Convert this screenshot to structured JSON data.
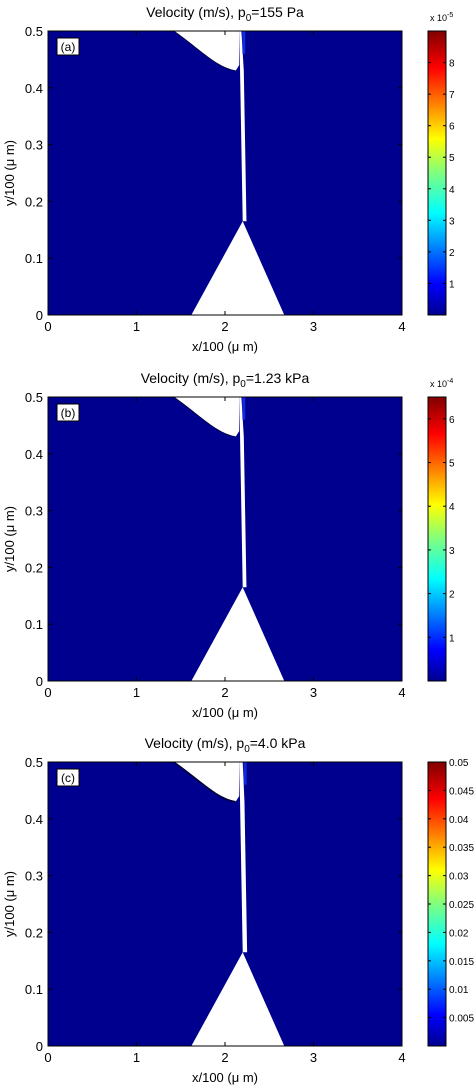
{
  "figure": {
    "colormap": "jet",
    "field_color": "#00008f",
    "solid_color": "#ffffff"
  },
  "chart_data": [
    {
      "type": "heatmap",
      "panel_label": "(a)",
      "title_main": "Velocity (m/s), p",
      "title_sub": "0",
      "title_rest": "=155 Pa",
      "xlabel": "x/100 (μ m)",
      "ylabel": "y/100 (μ m)",
      "xlim": [
        0,
        4
      ],
      "ylim": [
        0,
        0.5
      ],
      "xticks": [
        0,
        1,
        2,
        3,
        4
      ],
      "yticks": [
        0,
        0.1,
        0.2,
        0.3,
        0.4,
        0.5
      ],
      "xtick_labels": [
        "0",
        "1",
        "2",
        "3",
        "4"
      ],
      "ytick_labels": [
        "0",
        "0.1",
        "0.2",
        "0.3",
        "0.4",
        "0.5"
      ],
      "colorbar": {
        "multiplier": "x 10",
        "exponent": "-5",
        "clim": [
          0,
          9
        ],
        "ticks": [
          1,
          2,
          3,
          4,
          5,
          6,
          7,
          8
        ],
        "tick_labels": [
          "1",
          "2",
          "3",
          "4",
          "5",
          "6",
          "7",
          "8"
        ]
      }
    },
    {
      "type": "heatmap",
      "panel_label": "(b)",
      "title_main": "Velocity (m/s), p",
      "title_sub": "0",
      "title_rest": "=1.23 kPa",
      "xlabel": "x/100 (μ m)",
      "ylabel": "y/100 (μ m)",
      "xlim": [
        0,
        4
      ],
      "ylim": [
        0,
        0.5
      ],
      "xticks": [
        0,
        1,
        2,
        3,
        4
      ],
      "yticks": [
        0,
        0.1,
        0.2,
        0.3,
        0.4,
        0.5
      ],
      "xtick_labels": [
        "0",
        "1",
        "2",
        "3",
        "4"
      ],
      "ytick_labels": [
        "0",
        "0.1",
        "0.2",
        "0.3",
        "0.4",
        "0.5"
      ],
      "colorbar": {
        "multiplier": "x 10",
        "exponent": "-4",
        "clim": [
          0,
          6.5
        ],
        "ticks": [
          1,
          2,
          3,
          4,
          5,
          6
        ],
        "tick_labels": [
          "1",
          "2",
          "3",
          "4",
          "5",
          "6"
        ]
      }
    },
    {
      "type": "heatmap",
      "panel_label": "(c)",
      "title_main": "Velocity (m/s), p",
      "title_sub": "0",
      "title_rest": "=4.0 kPa",
      "xlabel": "x/100 (μ m)",
      "ylabel": "y/100 (μ m)",
      "xlim": [
        0,
        4
      ],
      "ylim": [
        0,
        0.5
      ],
      "xticks": [
        0,
        1,
        2,
        3,
        4
      ],
      "yticks": [
        0,
        0.1,
        0.2,
        0.3,
        0.4,
        0.5
      ],
      "xtick_labels": [
        "0",
        "1",
        "2",
        "3",
        "4"
      ],
      "ytick_labels": [
        "0",
        "0.1",
        "0.2",
        "0.3",
        "0.4",
        "0.5"
      ],
      "colorbar": {
        "multiplier": "",
        "exponent": "",
        "clim": [
          0,
          0.05
        ],
        "ticks": [
          0.005,
          0.01,
          0.015,
          0.02,
          0.025,
          0.03,
          0.035,
          0.04,
          0.045,
          0.05
        ],
        "tick_labels": [
          "0.005",
          "0.01",
          "0.015",
          "0.02",
          "0.025",
          "0.03",
          "0.035",
          "0.04",
          "0.045",
          "0.05"
        ]
      }
    }
  ]
}
